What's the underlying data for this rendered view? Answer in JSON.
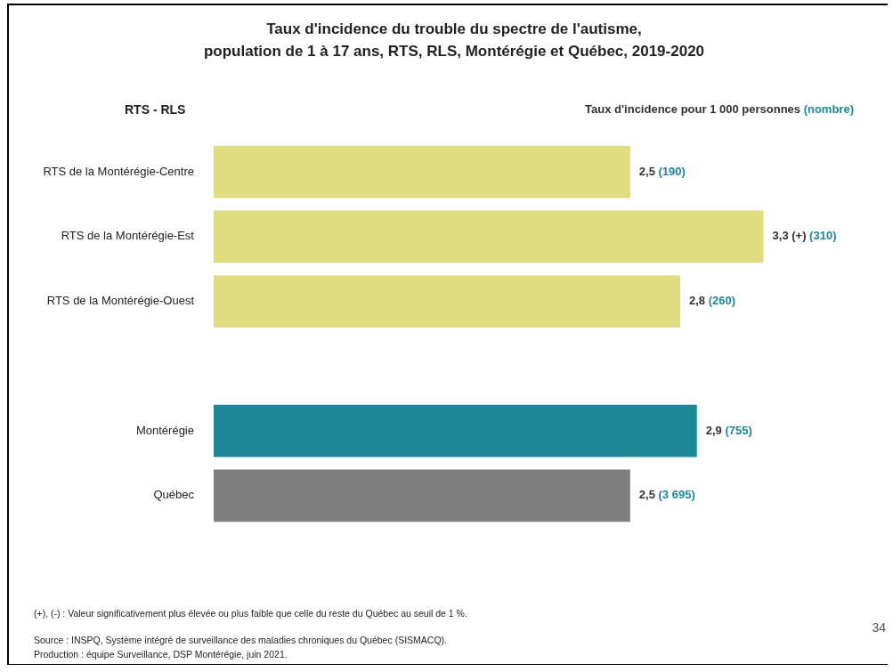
{
  "chart_data": {
    "type": "bar",
    "orientation": "horizontal",
    "title": "Taux d'incidence du trouble du spectre de l'autisme,\npopulation de 1 à 17 ans, RTS, RLS, Montérégie et Québec, 2019-2020",
    "ylabel": "RTS - RLS",
    "xlabel": "Taux d'incidence pour 1 000 personnes (nombre)",
    "categories": [
      "RTS de la Montérégie-Centre",
      "RTS de la Montérégie-Est",
      "RTS de la Montérégie-Ouest",
      null,
      "Montérégie",
      "Québec"
    ],
    "values": [
      2.5,
      3.3,
      2.8,
      null,
      2.9,
      2.5
    ],
    "colors": [
      "#e0dc82",
      "#e0dc82",
      "#e0dc82",
      "#e0dc82",
      "#1e8796",
      "#7f7f7f"
    ],
    "value_labels": [
      "2,5 (190)",
      "3,3 (+) (310)",
      "2,8 (260)",
      null,
      "2,9 (755)",
      "2,5 (3 695)"
    ],
    "annotations": [
      "(+), (-) : Valeur significativement plus élevée ou plus faible que celle du reste du Québec au seuil de 1 %.",
      "Source : INSPQ, Système intégré de surveillance des maladies chroniques du Québec (SISMACQ).",
      "Production : équipe Surveillance, DSP Montérégie, juin 2021.",
      "34"
    ]
  }
}
